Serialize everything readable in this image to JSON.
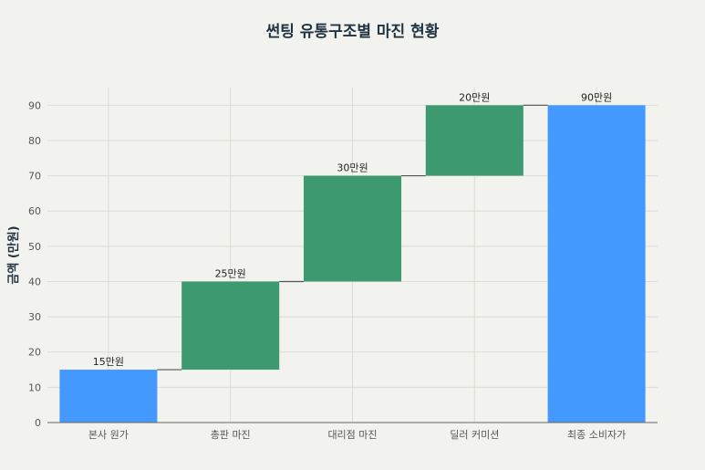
{
  "chart_data": {
    "type": "bar",
    "subtype": "waterfall",
    "title": "썬팅 유통구조별 마진 현황",
    "xlabel": "",
    "ylabel": "금액 (만원)",
    "categories": [
      "본사 원가",
      "총판 마진",
      "대리점 마진",
      "딜러 커미션",
      "최종 소비자가"
    ],
    "values": [
      15,
      25,
      30,
      20,
      90
    ],
    "bases": [
      0,
      15,
      40,
      70,
      0
    ],
    "data_labels": [
      "15만원",
      "25만원",
      "30만원",
      "20만원",
      "90만원"
    ],
    "bar_kinds": [
      "total",
      "increment",
      "increment",
      "increment",
      "total"
    ],
    "ylim": [
      0,
      95
    ],
    "yticks": [
      0,
      10,
      20,
      30,
      40,
      50,
      60,
      70,
      80,
      90
    ],
    "grid": true,
    "legend": "none",
    "colors": {
      "total": "#4499ff",
      "increment": "#3d9970",
      "connector": "#555555",
      "grid": "#dcdcd6",
      "axis": "#666666"
    }
  }
}
